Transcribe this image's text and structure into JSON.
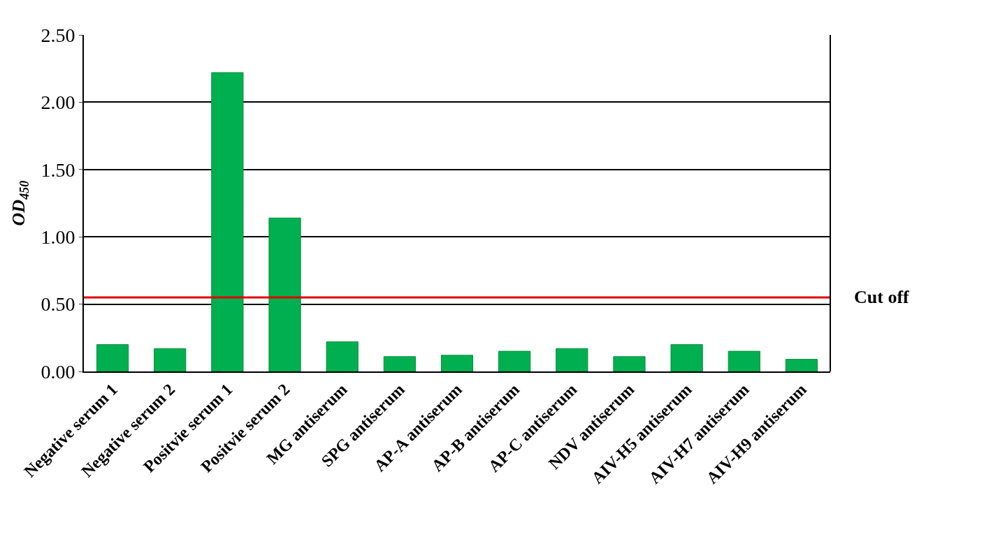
{
  "chart_data": {
    "type": "bar",
    "ylabel": "OD$_{450}$",
    "categories": [
      "Negative serum 1",
      "Negative serum 2",
      "Positvie serum 1",
      "Positvie serum 2",
      "MG antiserum",
      "SPG antiserum",
      "AP-A antiserum",
      "AP-B antiserum",
      "AP-C antiserum",
      "NDV antiserum",
      "AIV-H5 antiserum",
      "AIV-H7 antiserum",
      "AIV-H9 antiserum"
    ],
    "values": [
      0.2,
      0.17,
      2.22,
      1.14,
      0.22,
      0.11,
      0.12,
      0.15,
      0.17,
      0.11,
      0.2,
      0.15,
      0.09
    ],
    "color": "#00b050",
    "ylim": [
      0,
      2.5
    ],
    "yticks": [
      {
        "value": 0,
        "label": "0.00"
      },
      {
        "value": 0.5,
        "label": "0.50"
      },
      {
        "value": 1,
        "label": "1.00"
      },
      {
        "value": 1.5,
        "label": "1.50"
      },
      {
        "value": 2,
        "label": "2.00"
      },
      {
        "value": 2.5,
        "label": "2.50"
      }
    ],
    "grid": "y",
    "ref_lines": [
      {
        "axis": "y",
        "value": 0.55,
        "label": "Cut off",
        "color": "#e00000"
      }
    ]
  }
}
